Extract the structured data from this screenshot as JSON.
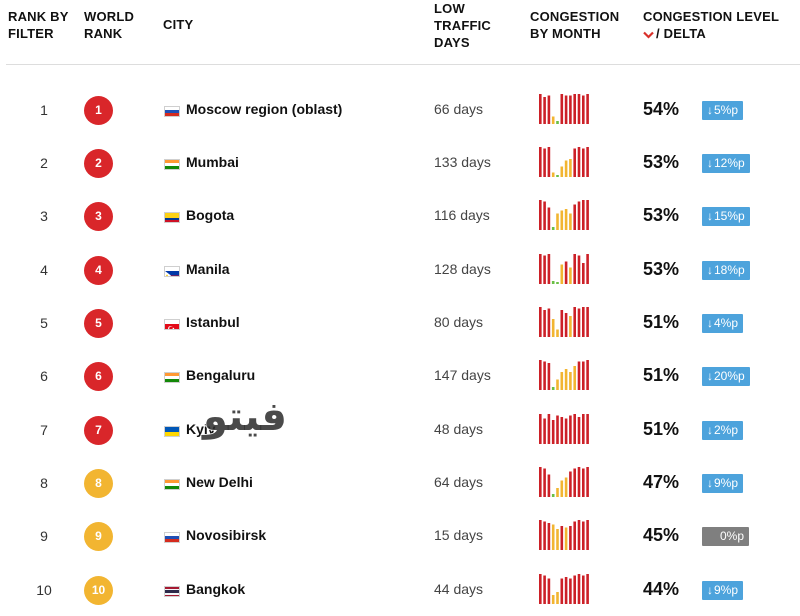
{
  "header": {
    "rank_by_filter": [
      "RANK BY",
      "FILTER"
    ],
    "world_rank": [
      "WORLD",
      "RANK"
    ],
    "city": "CITY",
    "low_traffic_days": [
      "LOW",
      "TRAFFIC",
      "DAYS"
    ],
    "congestion_by_month": [
      "CONGESTION",
      "BY MONTH"
    ],
    "congestion_level_line1": "CONGESTION LEVEL",
    "congestion_level_line2": "/ DELTA",
    "sort_icon": "chevron-down-icon"
  },
  "colors": {
    "badge_red": "#d9262a",
    "badge_yellow": "#f2b531",
    "bar_red": "#cc2027",
    "bar_yellow": "#f2b531",
    "bar_green": "#6abf45",
    "delta_blue": "#4da3dc",
    "delta_gray": "#7f7f7f"
  },
  "rows": [
    {
      "rank": "1",
      "world_rank": "1",
      "badge": "red",
      "flag": "russia",
      "city": "Moscow region (oblast)",
      "low_traffic_days": "66 days",
      "congestion_pct": "54%",
      "delta": "5%p",
      "delta_dir": "down",
      "months": [
        {
          "v": 1.0,
          "c": "r"
        },
        {
          "v": 0.9,
          "c": "r"
        },
        {
          "v": 0.95,
          "c": "r"
        },
        {
          "v": 0.25,
          "c": "y"
        },
        {
          "v": 0.1,
          "c": "g"
        },
        {
          "v": 1.0,
          "c": "r"
        },
        {
          "v": 0.95,
          "c": "r"
        },
        {
          "v": 0.95,
          "c": "r"
        },
        {
          "v": 1.0,
          "c": "r"
        },
        {
          "v": 1.0,
          "c": "r"
        },
        {
          "v": 0.95,
          "c": "r"
        },
        {
          "v": 1.0,
          "c": "r"
        }
      ]
    },
    {
      "rank": "2",
      "world_rank": "2",
      "badge": "red",
      "flag": "india",
      "city": "Mumbai",
      "low_traffic_days": "133 days",
      "congestion_pct": "53%",
      "delta": "12%p",
      "delta_dir": "down",
      "months": [
        {
          "v": 1.0,
          "c": "r"
        },
        {
          "v": 0.95,
          "c": "r"
        },
        {
          "v": 1.0,
          "c": "r"
        },
        {
          "v": 0.15,
          "c": "y"
        },
        {
          "v": 0.05,
          "c": "g"
        },
        {
          "v": 0.35,
          "c": "y"
        },
        {
          "v": 0.55,
          "c": "y"
        },
        {
          "v": 0.6,
          "c": "y"
        },
        {
          "v": 0.95,
          "c": "r"
        },
        {
          "v": 1.0,
          "c": "r"
        },
        {
          "v": 0.95,
          "c": "r"
        },
        {
          "v": 1.0,
          "c": "r"
        }
      ]
    },
    {
      "rank": "3",
      "world_rank": "3",
      "badge": "red",
      "flag": "colombia",
      "city": "Bogota",
      "low_traffic_days": "116 days",
      "congestion_pct": "53%",
      "delta": "15%p",
      "delta_dir": "down",
      "months": [
        {
          "v": 1.0,
          "c": "r"
        },
        {
          "v": 0.95,
          "c": "r"
        },
        {
          "v": 0.75,
          "c": "r"
        },
        {
          "v": 0.1,
          "c": "g"
        },
        {
          "v": 0.55,
          "c": "y"
        },
        {
          "v": 0.65,
          "c": "y"
        },
        {
          "v": 0.7,
          "c": "y"
        },
        {
          "v": 0.55,
          "c": "y"
        },
        {
          "v": 0.85,
          "c": "r"
        },
        {
          "v": 0.95,
          "c": "r"
        },
        {
          "v": 1.0,
          "c": "r"
        },
        {
          "v": 1.0,
          "c": "r"
        }
      ]
    },
    {
      "rank": "4",
      "world_rank": "4",
      "badge": "red",
      "flag": "philippines",
      "city": "Manila",
      "low_traffic_days": "128 days",
      "congestion_pct": "53%",
      "delta": "18%p",
      "delta_dir": "down",
      "months": [
        {
          "v": 1.0,
          "c": "r"
        },
        {
          "v": 0.95,
          "c": "r"
        },
        {
          "v": 1.0,
          "c": "r"
        },
        {
          "v": 0.1,
          "c": "g"
        },
        {
          "v": 0.05,
          "c": "g"
        },
        {
          "v": 0.65,
          "c": "y"
        },
        {
          "v": 0.75,
          "c": "r"
        },
        {
          "v": 0.55,
          "c": "y"
        },
        {
          "v": 1.0,
          "c": "r"
        },
        {
          "v": 0.95,
          "c": "r"
        },
        {
          "v": 0.7,
          "c": "r"
        },
        {
          "v": 1.0,
          "c": "r"
        }
      ]
    },
    {
      "rank": "5",
      "world_rank": "5",
      "badge": "red",
      "flag": "turkey",
      "city": "Istanbul",
      "low_traffic_days": "80 days",
      "congestion_pct": "51%",
      "delta": "4%p",
      "delta_dir": "down",
      "months": [
        {
          "v": 1.0,
          "c": "r"
        },
        {
          "v": 0.9,
          "c": "r"
        },
        {
          "v": 0.95,
          "c": "r"
        },
        {
          "v": 0.6,
          "c": "y"
        },
        {
          "v": 0.25,
          "c": "y"
        },
        {
          "v": 0.9,
          "c": "r"
        },
        {
          "v": 0.8,
          "c": "r"
        },
        {
          "v": 0.7,
          "c": "y"
        },
        {
          "v": 1.0,
          "c": "r"
        },
        {
          "v": 0.95,
          "c": "r"
        },
        {
          "v": 1.0,
          "c": "r"
        },
        {
          "v": 1.0,
          "c": "r"
        }
      ]
    },
    {
      "rank": "6",
      "world_rank": "6",
      "badge": "red",
      "flag": "india",
      "city": "Bengaluru",
      "low_traffic_days": "147 days",
      "congestion_pct": "51%",
      "delta": "20%p",
      "delta_dir": "down",
      "months": [
        {
          "v": 1.0,
          "c": "r"
        },
        {
          "v": 0.95,
          "c": "r"
        },
        {
          "v": 0.9,
          "c": "r"
        },
        {
          "v": 0.1,
          "c": "g"
        },
        {
          "v": 0.35,
          "c": "y"
        },
        {
          "v": 0.6,
          "c": "y"
        },
        {
          "v": 0.7,
          "c": "y"
        },
        {
          "v": 0.6,
          "c": "y"
        },
        {
          "v": 0.8,
          "c": "y"
        },
        {
          "v": 0.95,
          "c": "r"
        },
        {
          "v": 0.95,
          "c": "r"
        },
        {
          "v": 1.0,
          "c": "r"
        }
      ]
    },
    {
      "rank": "7",
      "world_rank": "7",
      "badge": "red",
      "flag": "ukraine",
      "city": "Kyiv",
      "low_traffic_days": "48 days",
      "congestion_pct": "51%",
      "delta": "2%p",
      "delta_dir": "down",
      "months": [
        {
          "v": 1.0,
          "c": "r"
        },
        {
          "v": 0.85,
          "c": "r"
        },
        {
          "v": 1.0,
          "c": "r"
        },
        {
          "v": 0.8,
          "c": "r"
        },
        {
          "v": 0.95,
          "c": "r"
        },
        {
          "v": 0.9,
          "c": "r"
        },
        {
          "v": 0.85,
          "c": "r"
        },
        {
          "v": 0.95,
          "c": "r"
        },
        {
          "v": 1.0,
          "c": "r"
        },
        {
          "v": 0.9,
          "c": "r"
        },
        {
          "v": 1.0,
          "c": "r"
        },
        {
          "v": 1.0,
          "c": "r"
        }
      ]
    },
    {
      "rank": "8",
      "world_rank": "8",
      "badge": "yellow",
      "flag": "india",
      "city": "New Delhi",
      "low_traffic_days": "64 days",
      "congestion_pct": "47%",
      "delta": "9%p",
      "delta_dir": "down",
      "months": [
        {
          "v": 1.0,
          "c": "r"
        },
        {
          "v": 0.95,
          "c": "r"
        },
        {
          "v": 0.75,
          "c": "r"
        },
        {
          "v": 0.1,
          "c": "g"
        },
        {
          "v": 0.3,
          "c": "y"
        },
        {
          "v": 0.55,
          "c": "y"
        },
        {
          "v": 0.65,
          "c": "y"
        },
        {
          "v": 0.85,
          "c": "r"
        },
        {
          "v": 0.95,
          "c": "r"
        },
        {
          "v": 1.0,
          "c": "r"
        },
        {
          "v": 0.95,
          "c": "r"
        },
        {
          "v": 1.0,
          "c": "r"
        }
      ]
    },
    {
      "rank": "9",
      "world_rank": "9",
      "badge": "yellow",
      "flag": "russia",
      "city": "Novosibirsk",
      "low_traffic_days": "15 days",
      "congestion_pct": "45%",
      "delta": "0%p",
      "delta_dir": "none",
      "months": [
        {
          "v": 1.0,
          "c": "r"
        },
        {
          "v": 0.95,
          "c": "r"
        },
        {
          "v": 0.9,
          "c": "r"
        },
        {
          "v": 0.85,
          "c": "y"
        },
        {
          "v": 0.7,
          "c": "y"
        },
        {
          "v": 0.8,
          "c": "r"
        },
        {
          "v": 0.75,
          "c": "y"
        },
        {
          "v": 0.8,
          "c": "r"
        },
        {
          "v": 0.95,
          "c": "r"
        },
        {
          "v": 1.0,
          "c": "r"
        },
        {
          "v": 0.95,
          "c": "r"
        },
        {
          "v": 1.0,
          "c": "r"
        }
      ]
    },
    {
      "rank": "10",
      "world_rank": "10",
      "badge": "yellow",
      "flag": "thailand",
      "city": "Bangkok",
      "low_traffic_days": "44 days",
      "congestion_pct": "44%",
      "delta": "9%p",
      "delta_dir": "down",
      "months": [
        {
          "v": 1.0,
          "c": "r"
        },
        {
          "v": 0.95,
          "c": "r"
        },
        {
          "v": 0.85,
          "c": "r"
        },
        {
          "v": 0.3,
          "c": "y"
        },
        {
          "v": 0.4,
          "c": "y"
        },
        {
          "v": 0.85,
          "c": "r"
        },
        {
          "v": 0.9,
          "c": "r"
        },
        {
          "v": 0.85,
          "c": "r"
        },
        {
          "v": 0.95,
          "c": "r"
        },
        {
          "v": 1.0,
          "c": "r"
        },
        {
          "v": 0.95,
          "c": "r"
        },
        {
          "v": 1.0,
          "c": "r"
        }
      ]
    }
  ],
  "watermark": {
    "text": "فيتو"
  }
}
